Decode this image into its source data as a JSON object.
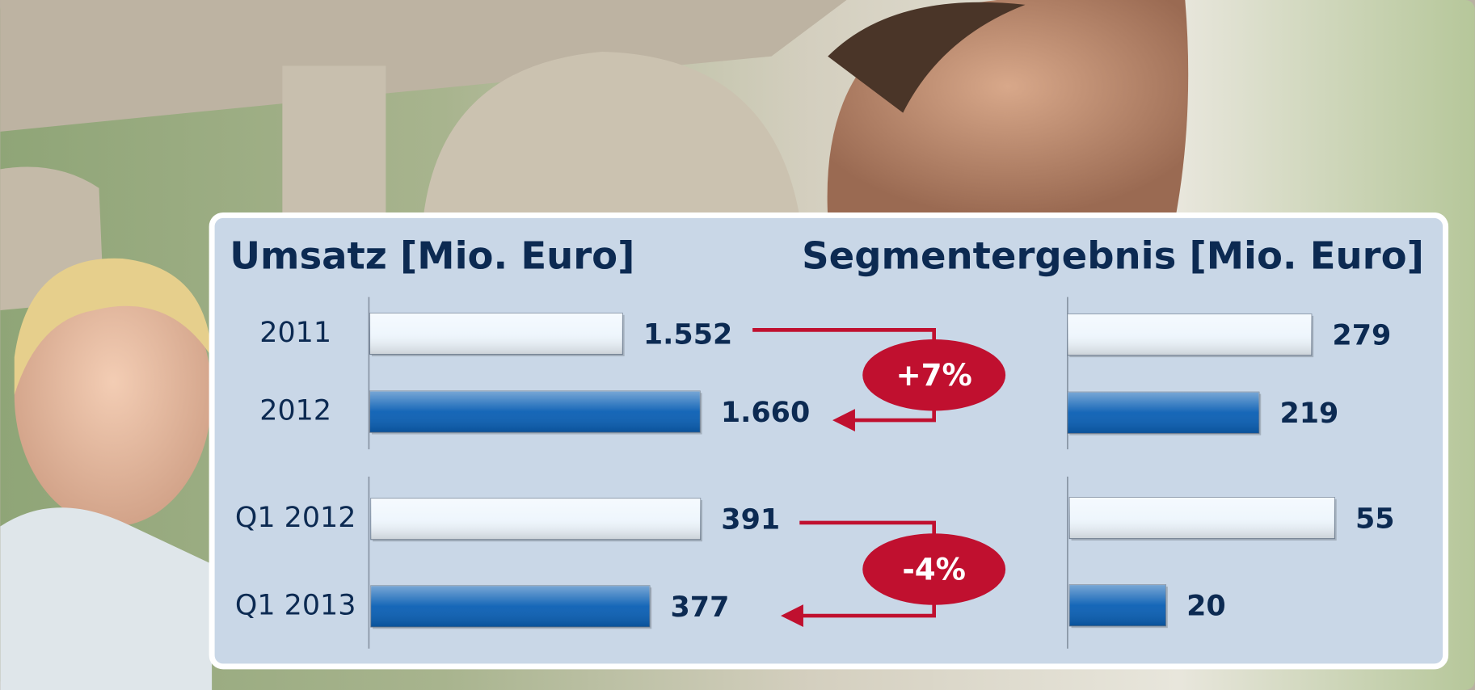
{
  "chart_data": [
    {
      "type": "bar",
      "title": "Umsatz [Mio. Euro]",
      "categories": [
        "2011",
        "2012"
      ],
      "values": [
        1552,
        1660
      ],
      "value_labels": [
        "1.552",
        "1.660"
      ],
      "colors": [
        "#eef6fd",
        "#0a5fb4"
      ],
      "xlim": [
        1200,
        1750
      ],
      "annotation": "+7%"
    },
    {
      "type": "bar",
      "categories": [
        "Q1 2012",
        "Q1 2013"
      ],
      "values": [
        391,
        377
      ],
      "colors": [
        "#eef6fd",
        "#0a5fb4"
      ],
      "xlim": [
        300,
        409
      ],
      "annotation": "-4%"
    },
    {
      "type": "bar",
      "title": "Segmentergebnis [Mio. Euro]",
      "values": [
        279,
        219
      ],
      "colors": [
        "#eef6fd",
        "#0a5fb4"
      ],
      "xlim": [
        0,
        430
      ]
    },
    {
      "type": "bar",
      "values": [
        55,
        20
      ],
      "colors": [
        "#eef6fd",
        "#0a5fb4"
      ],
      "xlim": [
        0,
        78
      ]
    }
  ]
}
